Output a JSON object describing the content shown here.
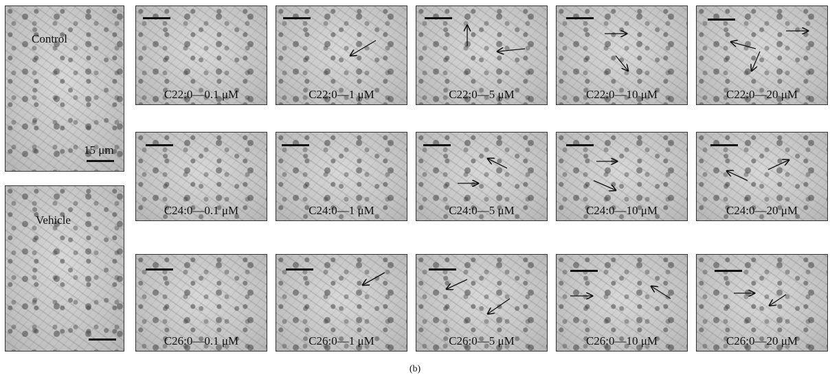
{
  "caption": "(b)",
  "control": {
    "label": "Control",
    "scale_label": "15 μm"
  },
  "vehicle": {
    "label": "Vehicle"
  },
  "rows": [
    {
      "panels": [
        {
          "label": "C22:0—0.1 μM"
        },
        {
          "label": "C22:0—1 μM"
        },
        {
          "label": "C22:0—5 μM"
        },
        {
          "label": "C22:0—10 μM"
        },
        {
          "label": "C22:0—20 μM"
        }
      ]
    },
    {
      "panels": [
        {
          "label": "C24:0—0.1 μM"
        },
        {
          "label": "C24:0—1 μM"
        },
        {
          "label": "C24:0—5 μM"
        },
        {
          "label": "C24:0—10 μM"
        },
        {
          "label": "C24:0—20 μM"
        }
      ]
    },
    {
      "panels": [
        {
          "label": "C26:0—0.1 μM"
        },
        {
          "label": "C26:0—1 μM"
        },
        {
          "label": "C26:0—5 μM"
        },
        {
          "label": "C26:0—10 μM"
        },
        {
          "label": "C26:0—20 μM"
        }
      ]
    }
  ]
}
